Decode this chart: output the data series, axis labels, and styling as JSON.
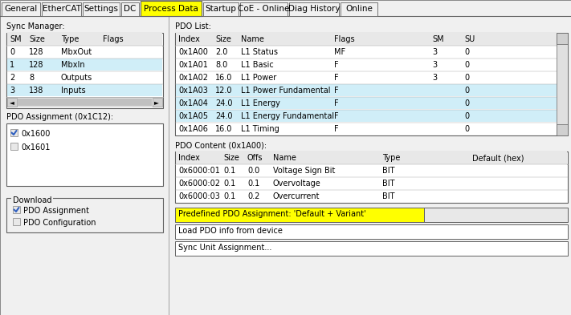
{
  "bg_color": "#f0f0f0",
  "tab_names": [
    "General",
    "EtherCAT",
    "Settings",
    "DC",
    "Process Data",
    "Startup",
    "CoE - Online",
    "Diag History",
    "Online"
  ],
  "active_tab": "Process Data",
  "active_tab_bg": "#ffff00",
  "tab_bg": "#d4d0c8",
  "panel_bg": "#ffffff",
  "highlight_blue": "#d0eef8",
  "highlight_yellow": "#ffff00",
  "sync_manager_label": "Sync Manager:",
  "sm_headers": [
    "SM",
    "Size",
    "Type",
    "Flags"
  ],
  "sm_rows": [
    [
      "0",
      "128",
      "MbxOut",
      ""
    ],
    [
      "1",
      "128",
      "MbxIn",
      ""
    ],
    [
      "2",
      "8",
      "Outputs",
      ""
    ],
    [
      "3",
      "138",
      "Inputs",
      ""
    ]
  ],
  "sm_highlight_rows": [
    1,
    3
  ],
  "pdo_list_label": "PDO List:",
  "pdo_headers": [
    "Index",
    "Size",
    "Name",
    "Flags",
    "SM",
    "SU"
  ],
  "pdo_rows": [
    [
      "0x1A00",
      "2.0",
      "L1 Status",
      "MF",
      "3",
      "0"
    ],
    [
      "0x1A01",
      "8.0",
      "L1 Basic",
      "F",
      "3",
      "0"
    ],
    [
      "0x1A02",
      "16.0",
      "L1 Power",
      "F",
      "3",
      "0"
    ],
    [
      "0x1A03",
      "12.0",
      "L1 Power Fundamental",
      "F",
      "",
      "0"
    ],
    [
      "0x1A04",
      "24.0",
      "L1 Energy",
      "F",
      "",
      "0"
    ],
    [
      "0x1A05",
      "24.0",
      "L1 Energy Fundamental",
      "F",
      "",
      "0"
    ],
    [
      "0x1A06",
      "16.0",
      "L1 Timing",
      "F",
      "",
      "0"
    ]
  ],
  "pdo_highlight_rows": [
    3,
    4,
    5
  ],
  "pdo_assignment_label": "PDO Assignment (0x1C12):",
  "pdo_assignment_items": [
    {
      "checked": true,
      "label": "0x1600"
    },
    {
      "checked": false,
      "label": "0x1601"
    }
  ],
  "pdo_content_label": "PDO Content (0x1A00):",
  "pdo_content_headers": [
    "Index",
    "Size",
    "Offs",
    "Name",
    "Type",
    "Default (hex)"
  ],
  "pdo_content_rows": [
    [
      "0x6000:01",
      "0.1",
      "0.0",
      "Voltage Sign Bit",
      "BIT",
      ""
    ],
    [
      "0x6000:02",
      "0.1",
      "0.1",
      "Overvoltage",
      "BIT",
      ""
    ],
    [
      "0x6000:03",
      "0.1",
      "0.2",
      "Overcurrent",
      "BIT",
      ""
    ]
  ],
  "predefined_label": "Predefined PDO Assignment: 'Default + Variant'",
  "load_pdo_label": "Load PDO info from device",
  "sync_unit_label": "Sync Unit Assignment...",
  "download_label": "Download",
  "download_items": [
    {
      "checked": true,
      "label": "PDO Assignment"
    },
    {
      "checked": false,
      "label": "PDO Configuration"
    }
  ],
  "border_color": "#a0a0a0",
  "border_dark": "#606060",
  "text_color": "#000000",
  "font_size": 7.0,
  "tab_font_size": 7.5,
  "tab_x_positions": [
    2,
    52,
    103,
    151,
    175,
    253,
    299,
    360,
    424
  ],
  "tab_widths": [
    48,
    49,
    46,
    22,
    76,
    44,
    59,
    62,
    46
  ]
}
